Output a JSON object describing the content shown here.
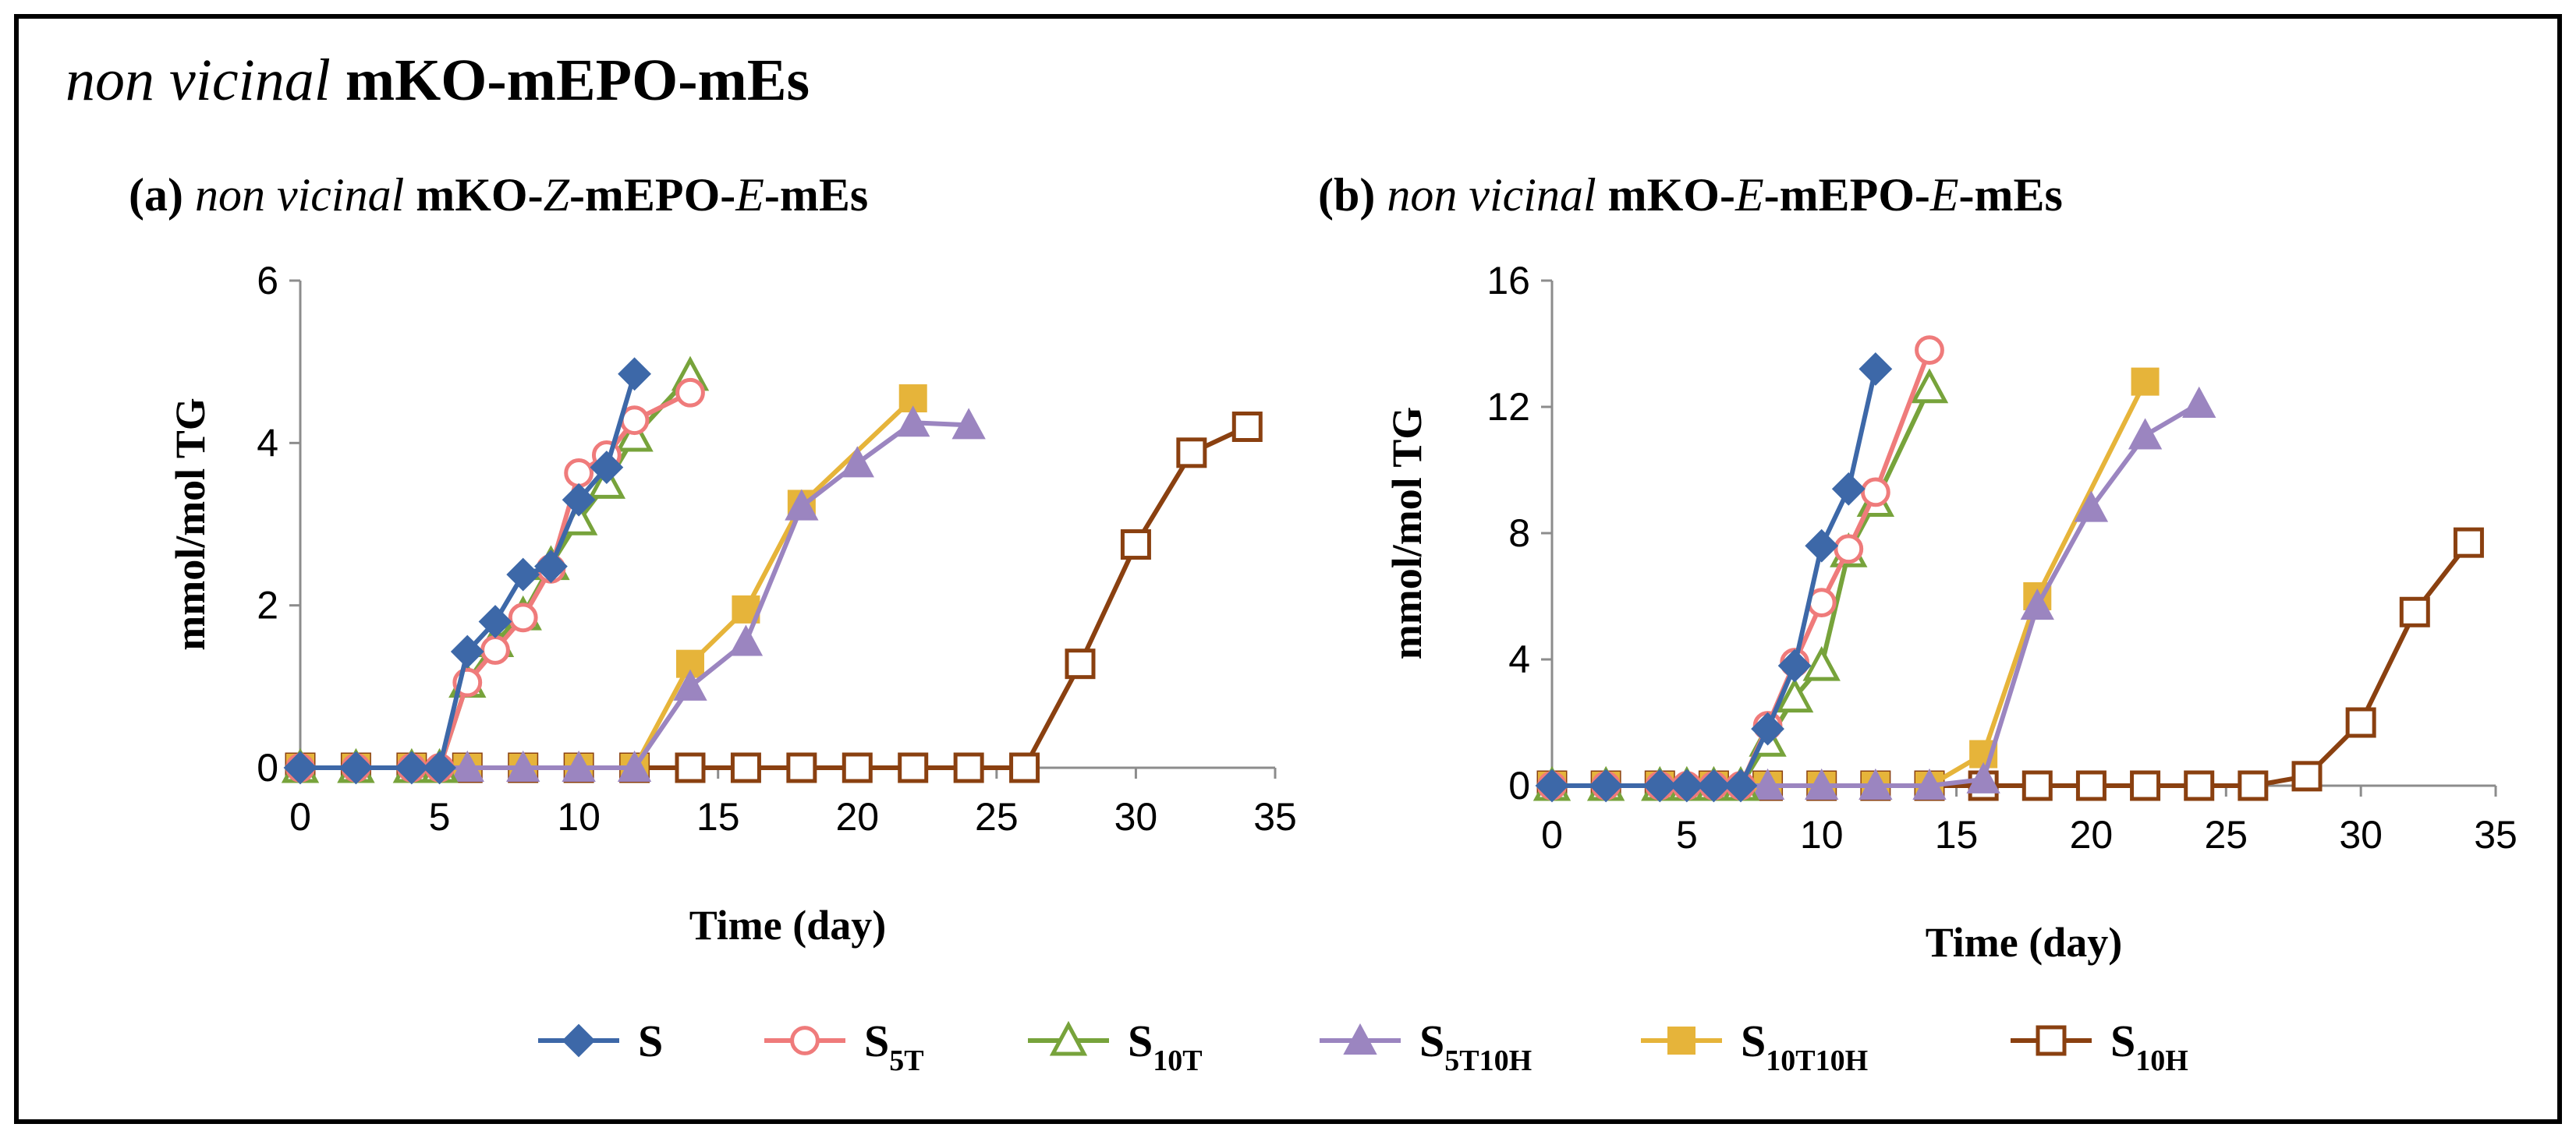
{
  "figure_title": {
    "italic": "non vicinal",
    "rest": " mKO-mEPO-mEs"
  },
  "chart_data": [
    {
      "type": "line",
      "panel_label": "(a)",
      "title_parts": [
        {
          "t": "(a) ",
          "i": false
        },
        {
          "t": "non vicinal",
          "i": true
        },
        {
          "t": " mKO-",
          "i": false
        },
        {
          "t": "Z",
          "i": true
        },
        {
          "t": "-mEPO-",
          "i": false
        },
        {
          "t": "E",
          "i": true
        },
        {
          "t": "-mEs",
          "i": false
        }
      ],
      "xlabel": "Time (day)",
      "ylabel": "mmol/mol TG",
      "xlim": [
        0,
        35
      ],
      "ylim": [
        0,
        6
      ],
      "xticks": [
        "0",
        "5",
        "10",
        "15",
        "20",
        "25",
        "30",
        "35"
      ],
      "yticks": [
        "0",
        "2",
        "4",
        "6"
      ],
      "series": [
        {
          "name": "S",
          "x": [
            0,
            2,
            4,
            5,
            6,
            7,
            8,
            9,
            10,
            11,
            12
          ],
          "y": [
            0,
            0,
            0,
            0,
            1.43,
            1.8,
            2.38,
            2.48,
            3.3,
            3.7,
            4.85
          ]
        },
        {
          "name": "S5T",
          "x": [
            0,
            2,
            4,
            5,
            6,
            7,
            8,
            9,
            10,
            11,
            12,
            14
          ],
          "y": [
            0,
            0,
            0,
            0,
            1.05,
            1.45,
            1.85,
            2.45,
            3.63,
            3.85,
            4.28,
            4.62
          ]
        },
        {
          "name": "S10T",
          "x": [
            0,
            2,
            4,
            5,
            6,
            7,
            8,
            9,
            10,
            11,
            12,
            14
          ],
          "y": [
            0,
            0,
            0,
            0,
            1.05,
            1.55,
            1.88,
            2.5,
            3.05,
            3.5,
            4.08,
            4.83
          ]
        },
        {
          "name": "S5T10H",
          "x": [
            0,
            2,
            4,
            6,
            8,
            10,
            12,
            14,
            16,
            18,
            20,
            22,
            24
          ],
          "y": [
            0,
            0,
            0,
            0,
            0,
            0,
            0,
            1.0,
            1.55,
            3.22,
            3.75,
            4.25,
            4.22
          ]
        },
        {
          "name": "S10T10H",
          "x": [
            0,
            2,
            4,
            6,
            8,
            10,
            12,
            14,
            16,
            18,
            22
          ],
          "y": [
            0,
            0,
            0,
            0,
            0,
            0,
            0,
            1.28,
            1.95,
            3.25,
            4.55
          ]
        },
        {
          "name": "S10H",
          "x": [
            0,
            2,
            4,
            6,
            8,
            10,
            12,
            14,
            16,
            18,
            20,
            22,
            24,
            26,
            28,
            30,
            32,
            34
          ],
          "y": [
            0,
            0,
            0,
            0,
            0,
            0,
            0,
            0,
            0,
            0,
            0,
            0,
            0,
            0,
            1.28,
            2.75,
            3.88,
            4.2
          ]
        }
      ]
    },
    {
      "type": "line",
      "panel_label": "(b)",
      "title_parts": [
        {
          "t": "(b) ",
          "i": false
        },
        {
          "t": "non vicinal",
          "i": true
        },
        {
          "t": " mKO-",
          "i": false
        },
        {
          "t": "E",
          "i": true
        },
        {
          "t": "-mEPO-",
          "i": false
        },
        {
          "t": "E",
          "i": true
        },
        {
          "t": "-mEs",
          "i": false
        }
      ],
      "xlabel": "Time (day)",
      "ylabel": "mmol/mol TG",
      "xlim": [
        0,
        35
      ],
      "ylim": [
        0,
        16
      ],
      "xticks": [
        "0",
        "5",
        "10",
        "15",
        "20",
        "25",
        "30",
        "35"
      ],
      "yticks": [
        "0",
        "4",
        "8",
        "12",
        "16"
      ],
      "series": [
        {
          "name": "S",
          "x": [
            0,
            2,
            4,
            5,
            6,
            7,
            8,
            9,
            10,
            11,
            12
          ],
          "y": [
            0,
            0,
            0,
            0,
            0,
            0,
            1.8,
            3.8,
            7.6,
            9.4,
            13.2
          ]
        },
        {
          "name": "S5T",
          "x": [
            0,
            2,
            4,
            5,
            6,
            7,
            8,
            9,
            10,
            11,
            12,
            14
          ],
          "y": [
            0,
            0,
            0,
            0,
            0,
            0,
            1.9,
            3.9,
            5.8,
            7.5,
            9.3,
            13.8
          ]
        },
        {
          "name": "S10T",
          "x": [
            0,
            2,
            4,
            5,
            6,
            7,
            8,
            9,
            10,
            11,
            12,
            14
          ],
          "y": [
            0,
            0,
            0,
            0,
            0,
            0,
            1.4,
            2.8,
            3.8,
            7.4,
            9.0,
            12.6
          ]
        },
        {
          "name": "S5T10H",
          "x": [
            0,
            2,
            4,
            6,
            8,
            10,
            12,
            14,
            16,
            18,
            20,
            22,
            24
          ],
          "y": [
            0,
            0,
            0,
            0,
            0,
            0,
            0,
            0,
            0.2,
            5.7,
            8.8,
            11.1,
            12.1
          ]
        },
        {
          "name": "S10T10H",
          "x": [
            0,
            2,
            4,
            6,
            8,
            10,
            12,
            14,
            16,
            18,
            22
          ],
          "y": [
            0,
            0,
            0,
            0,
            0,
            0,
            0,
            0,
            1.0,
            6.0,
            12.8
          ]
        },
        {
          "name": "S10H",
          "x": [
            0,
            2,
            4,
            6,
            8,
            10,
            12,
            14,
            16,
            18,
            20,
            22,
            24,
            26,
            28,
            30,
            32,
            34
          ],
          "y": [
            0,
            0,
            0,
            0,
            0,
            0,
            0,
            0,
            0,
            0,
            0,
            0,
            0,
            0,
            0.3,
            2.0,
            5.5,
            7.7
          ]
        }
      ]
    }
  ],
  "legend": [
    {
      "main": "S",
      "sub": "",
      "color": "#3d68a8",
      "marker": "diamond",
      "filled": true
    },
    {
      "main": "S",
      "sub": "5T",
      "color": "#ef7b7b",
      "marker": "circle",
      "filled": false
    },
    {
      "main": "S",
      "sub": "10T",
      "color": "#77a33b",
      "marker": "triangle",
      "filled": false
    },
    {
      "main": "S",
      "sub": "5T10H",
      "color": "#9b85c0",
      "marker": "triangle",
      "filled": true
    },
    {
      "main": "S",
      "sub": "10T10H",
      "color": "#e6b43a",
      "marker": "square",
      "filled": true
    },
    {
      "main": "S",
      "sub": "10H",
      "color": "#8a4010",
      "marker": "square",
      "filled": false
    }
  ]
}
